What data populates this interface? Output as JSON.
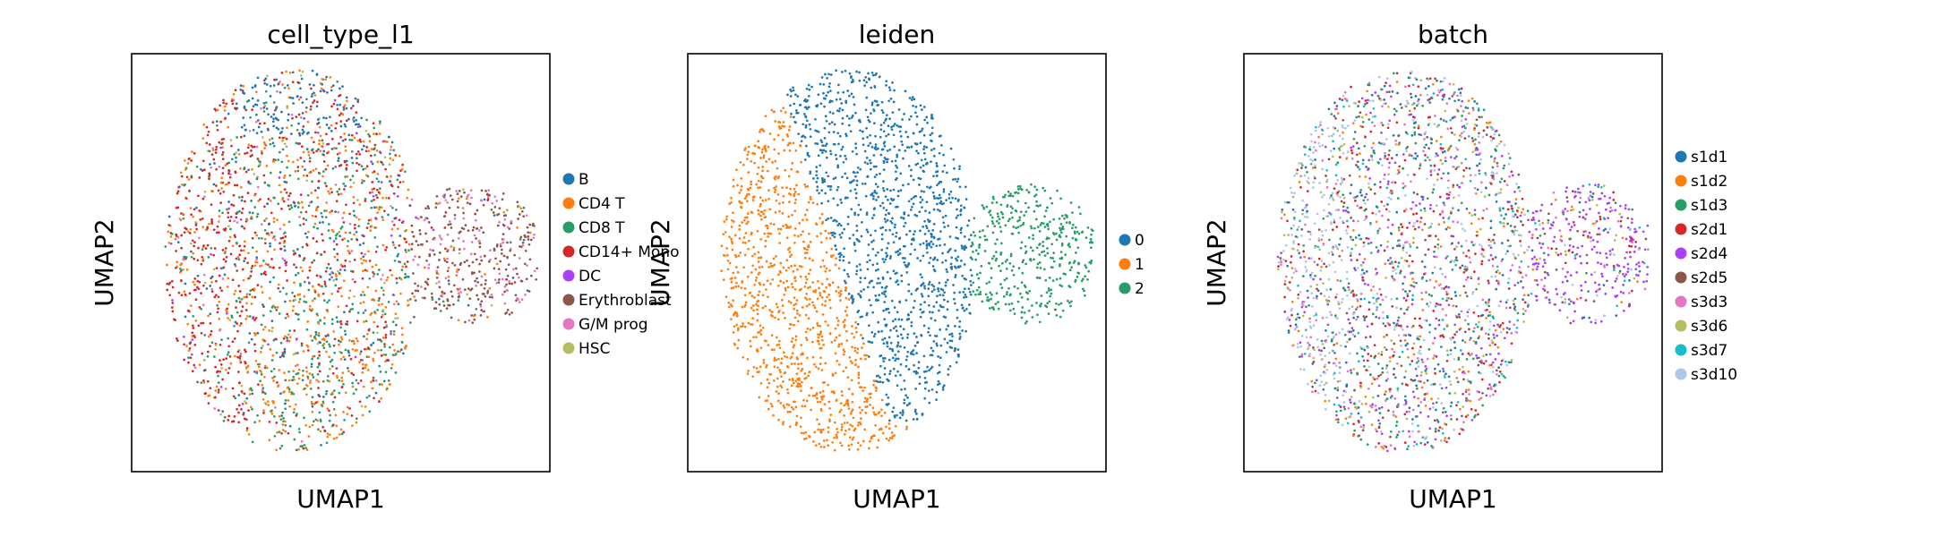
{
  "chart_data": [
    {
      "type": "scatter",
      "title": "cell_type_l1",
      "xlabel": "UMAP1",
      "ylabel": "UMAP2",
      "grid": false,
      "legend_placement": "right, outside",
      "legend": [
        {
          "name": "B",
          "color": "#1f77b4"
        },
        {
          "name": "CD4 T",
          "color": "#ff7f0e"
        },
        {
          "name": "CD8 T",
          "color": "#279e68"
        },
        {
          "name": "CD14+ Mono",
          "color": "#d62728"
        },
        {
          "name": "DC",
          "color": "#aa40fc"
        },
        {
          "name": "Erythroblast",
          "color": "#8c564b"
        },
        {
          "name": "G/M prog",
          "color": "#e377c2"
        },
        {
          "name": "HSC",
          "color": "#b5bd61"
        }
      ]
    },
    {
      "type": "scatter",
      "title": "leiden",
      "xlabel": "UMAP1",
      "ylabel": "UMAP2",
      "grid": false,
      "legend_placement": "right, outside",
      "legend": [
        {
          "name": "0",
          "color": "#1f77b4"
        },
        {
          "name": "1",
          "color": "#ff7f0e"
        },
        {
          "name": "2",
          "color": "#279e68"
        }
      ]
    },
    {
      "type": "scatter",
      "title": "batch",
      "xlabel": "UMAP1",
      "ylabel": "UMAP2",
      "grid": false,
      "legend_placement": "right, outside",
      "legend": [
        {
          "name": "s1d1",
          "color": "#1f77b4"
        },
        {
          "name": "s1d2",
          "color": "#ff7f0e"
        },
        {
          "name": "s1d3",
          "color": "#279e68"
        },
        {
          "name": "s2d1",
          "color": "#d62728"
        },
        {
          "name": "s2d4",
          "color": "#aa40fc"
        },
        {
          "name": "s2d5",
          "color": "#8c564b"
        },
        {
          "name": "s3d3",
          "color": "#e377c2"
        },
        {
          "name": "s3d6",
          "color": "#b5bd61"
        },
        {
          "name": "s3d7",
          "color": "#17becf"
        },
        {
          "name": "s3d10",
          "color": "#aec7e8"
        }
      ]
    }
  ]
}
